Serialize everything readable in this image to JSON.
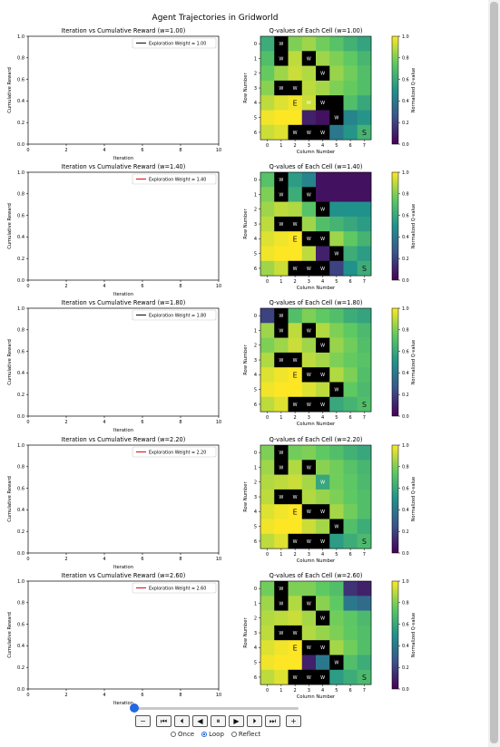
{
  "figure_title": "Agent Trajectories in Gridworld",
  "colors": {
    "colormap": "viridis",
    "wall": "#000000",
    "line_1": "#222222",
    "line_2": "#dd2222"
  },
  "chart_data": [
    {
      "type": "line",
      "title": "Iteration vs Cumulative Reward (w=1.00)",
      "xlabel": "Iteration",
      "ylabel": "Cumulative Reward",
      "xlim": [
        0,
        10
      ],
      "ylim": [
        0.0,
        1.0
      ],
      "xticks": [
        "0",
        "2",
        "4",
        "6",
        "8",
        "10"
      ],
      "yticks": [
        "0.0",
        "0.2",
        "0.4",
        "0.6",
        "0.8",
        "1.0"
      ],
      "legend_placement": "upper right",
      "series": [
        {
          "name": "Exploration Weight = 1.00",
          "color": "#222222",
          "x": [],
          "y": []
        }
      ]
    },
    {
      "type": "heatmap",
      "title": "Q-values of Each Cell (w=1.00)",
      "xlabel": "Column Number",
      "ylabel": "Row Number",
      "colorbar_label": "Normalized Q-value",
      "colorbar_ticks": [
        "0.0",
        "0.2",
        "0.4",
        "0.6",
        "0.8",
        "1.0"
      ],
      "x": [
        "0",
        "1",
        "2",
        "3",
        "4",
        "5",
        "6",
        "7"
      ],
      "y": [
        "0",
        "1",
        "2",
        "3",
        "4",
        "5",
        "6"
      ],
      "values": [
        [
          0.62,
          null,
          0.8,
          0.85,
          0.78,
          0.72,
          0.64,
          0.58
        ],
        [
          0.7,
          null,
          0.9,
          null,
          0.85,
          0.8,
          0.75,
          0.66
        ],
        [
          0.76,
          0.85,
          0.92,
          0.88,
          null,
          0.84,
          0.78,
          0.7
        ],
        [
          0.82,
          null,
          null,
          0.9,
          0.86,
          0.8,
          0.76,
          0.7
        ],
        [
          0.9,
          0.95,
          0.98,
          0.92,
          null,
          null,
          0.7,
          0.6
        ],
        [
          0.98,
          1.0,
          1.0,
          0.1,
          0.05,
          null,
          0.45,
          0.52
        ],
        [
          0.92,
          0.95,
          null,
          null,
          null,
          0.4,
          0.52,
          0.65
        ]
      ],
      "labels": [
        [
          "",
          "W",
          "",
          "",
          "",
          "",
          "",
          ""
        ],
        [
          "",
          "W",
          "",
          "W",
          "",
          "",
          "",
          ""
        ],
        [
          "",
          "",
          "",
          "",
          "W",
          "",
          "",
          ""
        ],
        [
          "",
          "W",
          "W",
          "",
          "",
          "",
          "",
          ""
        ],
        [
          "",
          "",
          "E",
          "W",
          "W",
          "",
          "",
          ""
        ],
        [
          "",
          "",
          "",
          "",
          "",
          "W",
          "",
          ""
        ],
        [
          "",
          "",
          "W",
          "W",
          "W",
          "",
          "",
          "S"
        ]
      ]
    },
    {
      "type": "line",
      "title": "Iteration vs Cumulative Reward (w=1.40)",
      "xlabel": "Iteration",
      "ylabel": "Cumulative Reward",
      "xlim": [
        0,
        10
      ],
      "ylim": [
        0.0,
        1.0
      ],
      "xticks": [
        "0",
        "2",
        "4",
        "6",
        "8",
        "10"
      ],
      "yticks": [
        "0.0",
        "0.2",
        "0.4",
        "0.6",
        "0.8",
        "1.0"
      ],
      "legend_placement": "upper right",
      "series": [
        {
          "name": "Exploration Weight = 1.40",
          "color": "#dd2222",
          "x": [],
          "y": []
        }
      ]
    },
    {
      "type": "heatmap",
      "title": "Q-values of Each Cell (w=1.40)",
      "xlabel": "Column Number",
      "ylabel": "Row Number",
      "colorbar_label": "Normalized Q-value",
      "colorbar_ticks": [
        "0.0",
        "0.2",
        "0.4",
        "0.6",
        "0.8",
        "1.0"
      ],
      "x": [
        "0",
        "1",
        "2",
        "3",
        "4",
        "5",
        "6",
        "7"
      ],
      "y": [
        "0",
        "1",
        "2",
        "3",
        "4",
        "5",
        "6"
      ],
      "values": [
        [
          0.72,
          null,
          0.55,
          0.45,
          0.05,
          0.05,
          0.05,
          0.05
        ],
        [
          0.8,
          null,
          0.62,
          null,
          0.05,
          0.05,
          0.05,
          0.05
        ],
        [
          0.85,
          0.9,
          0.88,
          0.72,
          null,
          0.5,
          0.5,
          0.5
        ],
        [
          0.9,
          null,
          null,
          0.85,
          0.7,
          0.65,
          0.6,
          0.55
        ],
        [
          0.95,
          0.98,
          1.0,
          null,
          null,
          0.85,
          0.75,
          0.65
        ],
        [
          0.98,
          1.0,
          1.0,
          0.9,
          0.1,
          null,
          0.62,
          0.55
        ],
        [
          0.85,
          0.92,
          null,
          null,
          null,
          0.2,
          0.5,
          0.62
        ]
      ],
      "labels": [
        [
          "",
          "W",
          "",
          "",
          "",
          "",
          "",
          ""
        ],
        [
          "",
          "W",
          "",
          "W",
          "",
          "",
          "",
          ""
        ],
        [
          "",
          "",
          "",
          "",
          "W",
          "",
          "",
          ""
        ],
        [
          "",
          "W",
          "W",
          "",
          "",
          "",
          "",
          ""
        ],
        [
          "",
          "",
          "E",
          "W",
          "W",
          "",
          "",
          ""
        ],
        [
          "",
          "",
          "",
          "",
          "",
          "W",
          "",
          ""
        ],
        [
          "",
          "",
          "W",
          "W",
          "W",
          "",
          "",
          "S"
        ]
      ]
    },
    {
      "type": "line",
      "title": "Iteration vs Cumulative Reward (w=1.80)",
      "xlabel": "Iteration",
      "ylabel": "Cumulative Reward",
      "xlim": [
        0,
        10
      ],
      "ylim": [
        0.0,
        1.0
      ],
      "xticks": [
        "0",
        "2",
        "4",
        "6",
        "8",
        "10"
      ],
      "yticks": [
        "0.0",
        "0.2",
        "0.4",
        "0.6",
        "0.8",
        "1.0"
      ],
      "legend_placement": "upper right",
      "series": [
        {
          "name": "Exploration Weight = 1.80",
          "color": "#222222",
          "x": [],
          "y": []
        }
      ]
    },
    {
      "type": "heatmap",
      "title": "Q-values of Each Cell (w=1.80)",
      "xlabel": "Column Number",
      "ylabel": "Row Number",
      "colorbar_label": "Normalized Q-value",
      "colorbar_ticks": [
        "0.0",
        "0.2",
        "0.4",
        "0.6",
        "0.8",
        "1.0"
      ],
      "x": [
        "0",
        "1",
        "2",
        "3",
        "4",
        "5",
        "6",
        "7"
      ],
      "y": [
        "0",
        "1",
        "2",
        "3",
        "4",
        "5",
        "6"
      ],
      "values": [
        [
          0.2,
          null,
          0.7,
          0.8,
          0.75,
          0.7,
          0.62,
          0.58
        ],
        [
          0.85,
          null,
          0.9,
          null,
          0.88,
          0.8,
          0.75,
          0.68
        ],
        [
          0.8,
          0.85,
          0.92,
          0.85,
          null,
          0.84,
          0.78,
          0.7
        ],
        [
          0.88,
          null,
          null,
          0.9,
          0.86,
          0.8,
          0.76,
          0.72
        ],
        [
          0.95,
          0.98,
          1.0,
          null,
          null,
          0.88,
          0.8,
          0.7
        ],
        [
          0.98,
          1.0,
          1.0,
          0.95,
          0.9,
          null,
          0.75,
          0.68
        ],
        [
          0.9,
          0.95,
          null,
          null,
          null,
          0.6,
          0.65,
          0.7
        ]
      ],
      "labels": [
        [
          "",
          "W",
          "",
          "",
          "",
          "",
          "",
          ""
        ],
        [
          "",
          "W",
          "",
          "W",
          "",
          "",
          "",
          ""
        ],
        [
          "",
          "",
          "",
          "",
          "W",
          "",
          "",
          ""
        ],
        [
          "",
          "W",
          "W",
          "",
          "",
          "",
          "",
          ""
        ],
        [
          "",
          "",
          "E",
          "W",
          "W",
          "",
          "",
          ""
        ],
        [
          "",
          "",
          "",
          "",
          "",
          "W",
          "",
          ""
        ],
        [
          "",
          "",
          "W",
          "W",
          "W",
          "",
          "",
          "S"
        ]
      ]
    },
    {
      "type": "line",
      "title": "Iteration vs Cumulative Reward (w=2.20)",
      "xlabel": "Iteration",
      "ylabel": "Cumulative Reward",
      "xlim": [
        0,
        10
      ],
      "ylim": [
        0.0,
        1.0
      ],
      "xticks": [
        "0",
        "2",
        "4",
        "6",
        "8",
        "10"
      ],
      "yticks": [
        "0.0",
        "0.2",
        "0.4",
        "0.6",
        "0.8",
        "1.0"
      ],
      "legend_placement": "upper right",
      "series": [
        {
          "name": "Exploration Weight = 2.20",
          "color": "#dd2222",
          "x": [],
          "y": []
        }
      ]
    },
    {
      "type": "heatmap",
      "title": "Q-values of Each Cell (w=2.20)",
      "xlabel": "Column Number",
      "ylabel": "Row Number",
      "colorbar_label": "Normalized Q-value",
      "colorbar_ticks": [
        "0.0",
        "0.2",
        "0.4",
        "0.6",
        "0.8",
        "1.0"
      ],
      "x": [
        "0",
        "1",
        "2",
        "3",
        "4",
        "5",
        "6",
        "7"
      ],
      "y": [
        "0",
        "1",
        "2",
        "3",
        "4",
        "5",
        "6"
      ],
      "values": [
        [
          0.8,
          null,
          0.78,
          0.8,
          0.75,
          0.7,
          0.64,
          0.6
        ],
        [
          0.85,
          null,
          0.88,
          null,
          0.82,
          0.78,
          0.72,
          0.66
        ],
        [
          0.88,
          0.9,
          0.92,
          0.86,
          0.6,
          0.78,
          0.74,
          0.68
        ],
        [
          0.9,
          null,
          null,
          0.88,
          0.84,
          0.8,
          0.75,
          0.7
        ],
        [
          0.95,
          0.98,
          1.0,
          null,
          null,
          0.86,
          0.78,
          0.7
        ],
        [
          0.98,
          1.0,
          1.0,
          0.92,
          0.86,
          null,
          0.7,
          0.62
        ],
        [
          0.9,
          0.95,
          null,
          null,
          null,
          0.55,
          0.62,
          0.68
        ]
      ],
      "labels": [
        [
          "",
          "W",
          "",
          "",
          "",
          "",
          "",
          ""
        ],
        [
          "",
          "W",
          "",
          "W",
          "",
          "",
          "",
          ""
        ],
        [
          "",
          "",
          "",
          "",
          "W",
          "",
          "",
          ""
        ],
        [
          "",
          "W",
          "W",
          "",
          "",
          "",
          "",
          ""
        ],
        [
          "",
          "",
          "E",
          "W",
          "W",
          "",
          "",
          ""
        ],
        [
          "",
          "",
          "",
          "",
          "",
          "W",
          "",
          ""
        ],
        [
          "",
          "",
          "W",
          "W",
          "W",
          "",
          "",
          "S"
        ]
      ]
    },
    {
      "type": "line",
      "title": "Iteration vs Cumulative Reward (w=2.60)",
      "xlabel": "Iteration",
      "ylabel": "Cumulative Reward",
      "xlim": [
        0,
        10
      ],
      "ylim": [
        0.0,
        1.0
      ],
      "xticks": [
        "0",
        "2",
        "4",
        "6",
        "8",
        "10"
      ],
      "yticks": [
        "0.0",
        "0.2",
        "0.4",
        "0.6",
        "0.8",
        "1.0"
      ],
      "legend_placement": "upper right",
      "series": [
        {
          "name": "Exploration Weight = 2.60",
          "color": "#dd2222",
          "x": [],
          "y": []
        }
      ]
    },
    {
      "type": "heatmap",
      "title": "Q-values of Each Cell (w=2.60)",
      "xlabel": "Column Number",
      "ylabel": "Row Number",
      "colorbar_label": "Normalized Q-value",
      "colorbar_ticks": [
        "0.0",
        "0.2",
        "0.4",
        "0.6",
        "0.8",
        "1.0"
      ],
      "x": [
        "0",
        "1",
        "2",
        "3",
        "4",
        "5",
        "6",
        "7"
      ],
      "y": [
        "0",
        "1",
        "2",
        "3",
        "4",
        "5",
        "6"
      ],
      "values": [
        [
          0.78,
          null,
          0.8,
          0.8,
          0.75,
          0.7,
          0.15,
          0.1
        ],
        [
          0.85,
          null,
          0.88,
          null,
          0.82,
          0.75,
          0.4,
          0.35
        ],
        [
          0.88,
          0.9,
          0.92,
          0.86,
          null,
          0.78,
          0.74,
          0.68
        ],
        [
          0.9,
          null,
          null,
          0.88,
          0.84,
          0.8,
          0.75,
          0.7
        ],
        [
          0.95,
          0.98,
          1.0,
          null,
          null,
          0.86,
          0.78,
          0.7
        ],
        [
          0.98,
          1.0,
          1.0,
          0.1,
          0.4,
          null,
          0.7,
          0.62
        ],
        [
          0.9,
          0.95,
          null,
          null,
          null,
          0.55,
          0.62,
          0.68
        ]
      ],
      "labels": [
        [
          "",
          "W",
          "",
          "",
          "",
          "",
          "",
          ""
        ],
        [
          "",
          "W",
          "",
          "W",
          "",
          "",
          "",
          ""
        ],
        [
          "",
          "",
          "",
          "",
          "W",
          "",
          "",
          ""
        ],
        [
          "",
          "W",
          "W",
          "",
          "",
          "",
          "",
          ""
        ],
        [
          "",
          "",
          "E",
          "W",
          "W",
          "",
          "",
          ""
        ],
        [
          "",
          "",
          "",
          "",
          "",
          "W",
          "",
          ""
        ],
        [
          "",
          "",
          "W",
          "W",
          "W",
          "",
          "",
          "S"
        ]
      ]
    }
  ],
  "animation": {
    "buttons": [
      {
        "name": "decrease-speed-button",
        "glyph": "−"
      },
      {
        "name": "first-frame-button",
        "glyph": "⏮"
      },
      {
        "name": "previous-frame-button",
        "glyph": "⏴"
      },
      {
        "name": "play-reverse-button",
        "glyph": "◀"
      },
      {
        "name": "pause-button",
        "glyph": "⏸"
      },
      {
        "name": "play-button",
        "glyph": "▶"
      },
      {
        "name": "next-frame-button",
        "glyph": "⏵"
      },
      {
        "name": "last-frame-button",
        "glyph": "⏭"
      },
      {
        "name": "increase-speed-button",
        "glyph": "+"
      }
    ],
    "modes": [
      {
        "label": "Once",
        "selected": false
      },
      {
        "label": "Loop",
        "selected": true
      },
      {
        "label": "Reflect",
        "selected": false
      }
    ],
    "frame_fraction": 0.0
  }
}
